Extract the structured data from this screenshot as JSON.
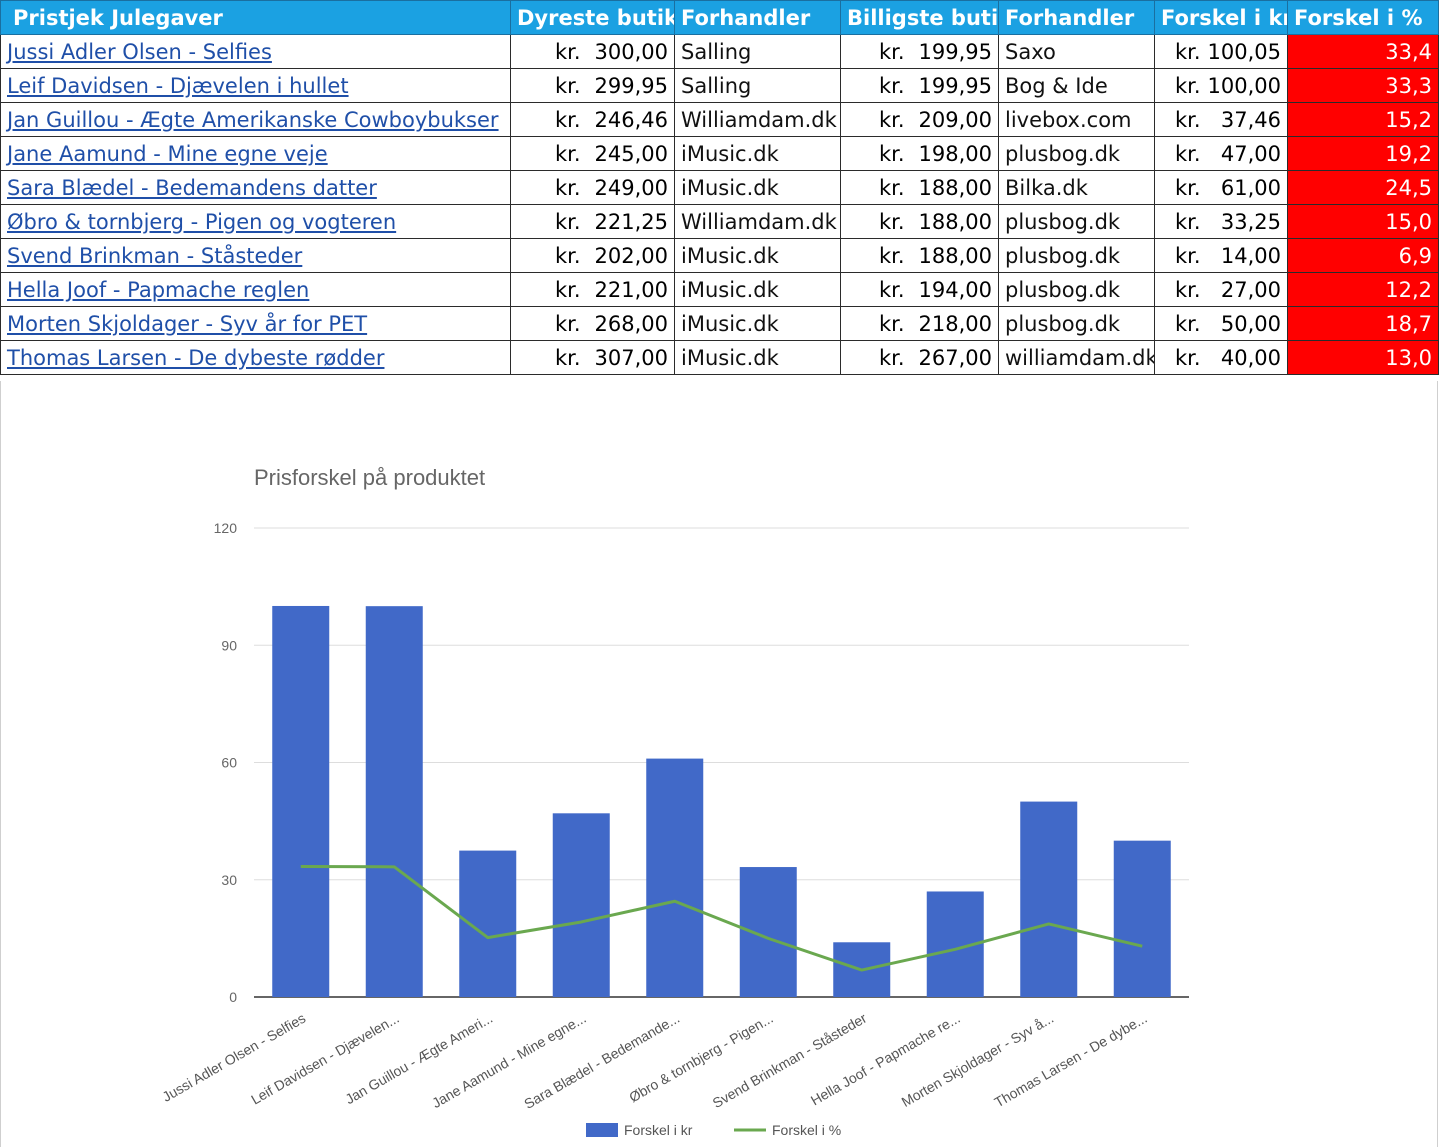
{
  "table": {
    "headers": [
      "Pristjek Julegaver",
      "Dyreste butik",
      "Forhandler",
      "Billigste butik",
      "Forhandler",
      "Forskel i kr",
      "Forskel i %"
    ],
    "currency": "kr.",
    "rows": [
      {
        "title": "Jussi Adler Olsen - Selfies ",
        "dyr": "300,00",
        "dyr_store": "Salling",
        "bil": "199,95",
        "bil_store": "Saxo",
        "diff": "100,05",
        "pct": "33,4"
      },
      {
        "title": "Leif Davidsen - Djævelen i hullet ",
        "dyr": "299,95",
        "dyr_store": "Salling",
        "bil": "199,95",
        "bil_store": "Bog & Ide",
        "diff": "100,00",
        "pct": "33,3"
      },
      {
        "title": "Jan Guillou - Ægte Amerikanske Cowboybukser ",
        "dyr": "246,46",
        "dyr_store": "Williamdam.dk",
        "bil": "209,00",
        "bil_store": "livebox.com",
        "diff": "37,46",
        "pct": "15,2"
      },
      {
        "title": "Jane Aamund - Mine egne veje ",
        "dyr": "245,00",
        "dyr_store": "iMusic.dk",
        "bil": "198,00",
        "bil_store": "plusbog.dk",
        "diff": "47,00",
        "pct": "19,2"
      },
      {
        "title": "Sara Blædel - Bedemandens datter ",
        "dyr": "249,00",
        "dyr_store": "iMusic.dk",
        "bil": "188,00",
        "bil_store": "Bilka.dk",
        "diff": "61,00",
        "pct": "24,5"
      },
      {
        "title": "Øbro & tornbjerg - Pigen og vogteren ",
        "dyr": "221,25",
        "dyr_store": "Williamdam.dk",
        "bil": "188,00",
        "bil_store": "plusbog.dk",
        "diff": "33,25",
        "pct": "15,0"
      },
      {
        "title": "Svend Brinkman - Ståsteder ",
        "dyr": "202,00",
        "dyr_store": "iMusic.dk",
        "bil": "188,00",
        "bil_store": "plusbog.dk",
        "diff": "14,00",
        "pct": "6,9"
      },
      {
        "title": "Hella Joof - Papmache reglen ",
        "dyr": "221,00",
        "dyr_store": "iMusic.dk",
        "bil": "194,00",
        "bil_store": "plusbog.dk",
        "diff": "27,00",
        "pct": "12,2"
      },
      {
        "title": "Morten Skjoldager - Syv år for PET ",
        "dyr": "268,00",
        "dyr_store": "iMusic.dk",
        "bil": "218,00",
        "bil_store": "plusbog.dk",
        "diff": "50,00",
        "pct": "18,7"
      },
      {
        "title": "Thomas Larsen - De dybeste rødder ",
        "dyr": "307,00",
        "dyr_store": "iMusic.dk",
        "bil": "267,00",
        "bil_store": "williamdam.dk",
        "diff": "40,00",
        "pct": "13,0"
      }
    ]
  },
  "chart_data": {
    "type": "bar",
    "title": "Prisforskel på produktet",
    "categories": [
      "Jussi Adler Olsen - Selfies",
      "Leif Davidsen - Djævelen...",
      "Jan Guillou - Ægte Ameri...",
      "Jane Aamund - Mine egne...",
      "Sara Blædel - Bedemande...",
      "Øbro & tornbjerg - Pigen...",
      "Svend Brinkman - Ståsteder",
      "Hella Joof - Papmache re...",
      "Morten Skjoldager - Syv å...",
      "Thomas Larsen - De dybe..."
    ],
    "series": [
      {
        "name": "Forskel i kr",
        "type": "bar",
        "color": "#4169c8",
        "values": [
          100.05,
          100.0,
          37.46,
          47.0,
          61.0,
          33.25,
          14.0,
          27.0,
          50.0,
          40.0
        ]
      },
      {
        "name": "Forskel i %",
        "type": "line",
        "color": "#6aa84f",
        "values": [
          33.4,
          33.3,
          15.2,
          19.2,
          24.5,
          15.0,
          6.9,
          12.2,
          18.7,
          13.0
        ]
      }
    ],
    "yticks": [
      "0",
      "30",
      "60",
      "90",
      "120"
    ],
    "ylim": [
      0,
      120
    ],
    "grid": true,
    "legend": "bottom"
  }
}
